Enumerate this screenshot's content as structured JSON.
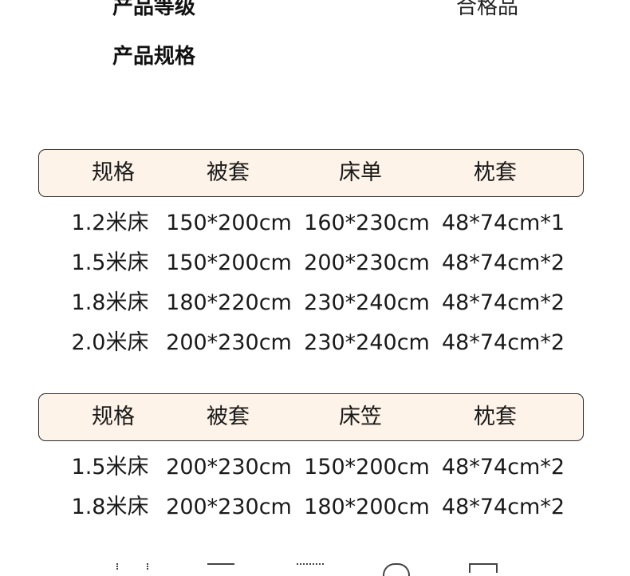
{
  "info": [
    {
      "label": "产品等级",
      "value": "合格品"
    },
    {
      "label": "产品规格",
      "value": ""
    }
  ],
  "tables": [
    {
      "headers": [
        "规格",
        "被套",
        "床单",
        "枕套"
      ],
      "rows": [
        [
          "1.2米床",
          "150*200cm",
          "160*230cm",
          "48*74cm*1"
        ],
        [
          "1.5米床",
          "150*200cm",
          "200*230cm",
          "48*74cm*2"
        ],
        [
          "1.8米床",
          "180*220cm",
          "230*240cm",
          "48*74cm*2"
        ],
        [
          "2.0米床",
          "200*230cm",
          "230*240cm",
          "48*74cm*2"
        ]
      ]
    },
    {
      "headers": [
        "规格",
        "被套",
        "床笠",
        "枕套"
      ],
      "rows": [
        [
          "1.5米床",
          "200*230cm",
          "150*200cm",
          "48*74cm*2"
        ],
        [
          "1.8米床",
          "200*230cm",
          "180*200cm",
          "48*74cm*2"
        ]
      ]
    }
  ],
  "colors": {
    "header_bg": "#fdf3e8",
    "border": "#2a2a2a"
  }
}
